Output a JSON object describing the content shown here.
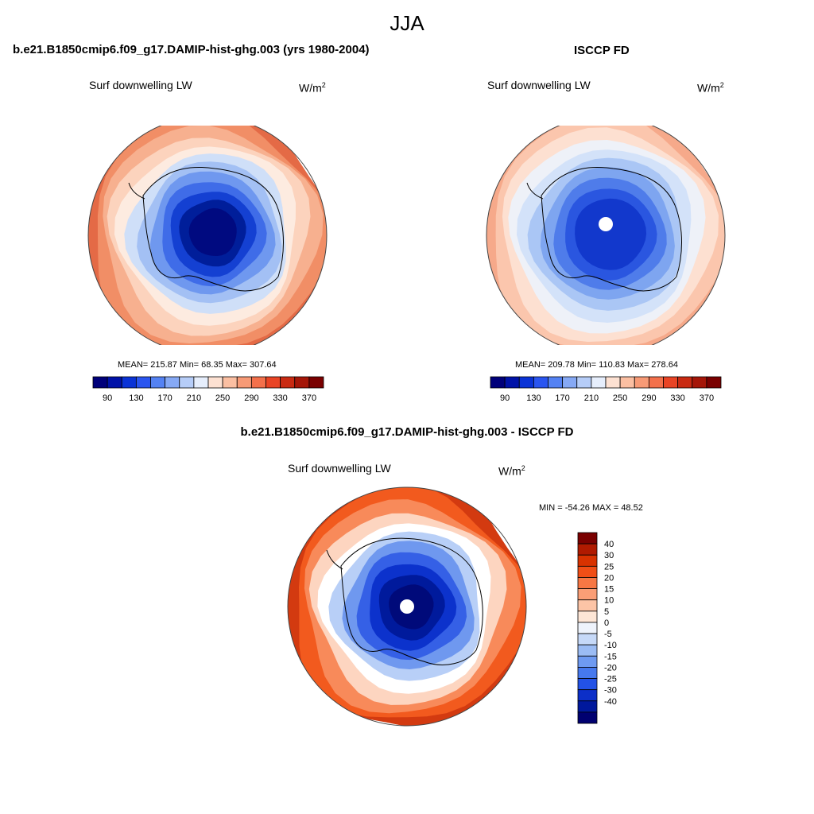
{
  "figure": {
    "title": "JJA"
  },
  "panels": {
    "model": {
      "title": "b.e21.B1850cmip6.f09_g17.DAMIP-hist-ghg.003 (yrs 1980-2004)",
      "variable": "Surf downwelling LW",
      "unit_base": "W/m",
      "unit_exp": "2",
      "stats": "MEAN= 215.87  Min=  68.35  Max= 307.64",
      "colorbar_colors": [
        "#00007a",
        "#0012a8",
        "#0a33d6",
        "#2a55f0",
        "#5482f3",
        "#86a9f5",
        "#b6cdf8",
        "#e6eefc",
        "#fde1d2",
        "#fbbfa2",
        "#f79a76",
        "#f3704b",
        "#e94425",
        "#c92a12",
        "#a51608",
        "#7a0000"
      ],
      "colorbar_ticks": [
        "90",
        "130",
        "170",
        "210",
        "250",
        "290",
        "330",
        "370"
      ]
    },
    "obs": {
      "title": "ISCCP FD",
      "variable": "Surf downwelling LW",
      "unit_base": "W/m",
      "unit_exp": "2",
      "stats": "MEAN= 209.78  Min= 110.83  Max= 278.64",
      "colorbar_colors": [
        "#00007a",
        "#0012a8",
        "#0a33d6",
        "#2a55f0",
        "#5482f3",
        "#86a9f5",
        "#b6cdf8",
        "#e6eefc",
        "#fde1d2",
        "#fbbfa2",
        "#f79a76",
        "#f3704b",
        "#e94425",
        "#c92a12",
        "#a51608",
        "#7a0000"
      ],
      "colorbar_ticks": [
        "90",
        "130",
        "170",
        "210",
        "250",
        "290",
        "330",
        "370"
      ]
    },
    "diff": {
      "title": "b.e21.B1850cmip6.f09_g17.DAMIP-hist-ghg.003 - ISCCP FD",
      "variable": "Surf downwelling LW",
      "unit_base": "W/m",
      "unit_exp": "2",
      "stats": "MIN = -54.26 MAX =  48.52",
      "colorbar_colors": [
        "#7a0000",
        "#b01a00",
        "#d83200",
        "#f04e16",
        "#f77744",
        "#fa9e76",
        "#fcc4a6",
        "#fde6d6",
        "#eef3fc",
        "#c6d9f8",
        "#9bbcf4",
        "#6e9af1",
        "#4679ee",
        "#2352e6",
        "#0c2fc8",
        "#00189c",
        "#000070"
      ],
      "colorbar_ticks": [
        "40",
        "30",
        "25",
        "20",
        "15",
        "10",
        "5",
        "0",
        "-5",
        "-10",
        "-15",
        "-20",
        "-25",
        "-30",
        "-40"
      ]
    }
  },
  "maps": {
    "model": {
      "fill_levels": [
        {
          "color": "#e46a46"
        },
        {
          "color": "#f18e66"
        },
        {
          "color": "#f7b08f"
        },
        {
          "color": "#fcd3bd"
        },
        {
          "color": "#fdebe0"
        },
        {
          "color": "#cfdff8"
        },
        {
          "color": "#a3c0f4"
        },
        {
          "color": "#6f98ef"
        },
        {
          "color": "#3f6ce8"
        },
        {
          "color": "#1440d2"
        },
        {
          "color": "#001e9a"
        },
        {
          "color": "#000a80"
        }
      ]
    },
    "obs": {
      "fill_levels": [
        {
          "color": "#f6a98a"
        },
        {
          "color": "#fbc6ad"
        },
        {
          "color": "#fde0d1"
        },
        {
          "color": "#eef1f8"
        },
        {
          "color": "#d3e2f9"
        },
        {
          "color": "#aac6f5"
        },
        {
          "color": "#7ea5f0"
        },
        {
          "color": "#4f7cea"
        },
        {
          "color": "#2a56e0"
        },
        {
          "color": "#1238cc"
        }
      ]
    },
    "diff": {
      "fill_levels": [
        {
          "color": "#d33a10"
        },
        {
          "color": "#f25a1e"
        },
        {
          "color": "#f88a5a"
        },
        {
          "color": "#fdd5c0"
        },
        {
          "color": "#ffffff"
        },
        {
          "color": "#b8cff7"
        },
        {
          "color": "#6f98ef"
        },
        {
          "color": "#3560e6"
        },
        {
          "color": "#0c32cc"
        },
        {
          "color": "#001a9c"
        },
        {
          "color": "#000a7a"
        }
      ]
    }
  }
}
